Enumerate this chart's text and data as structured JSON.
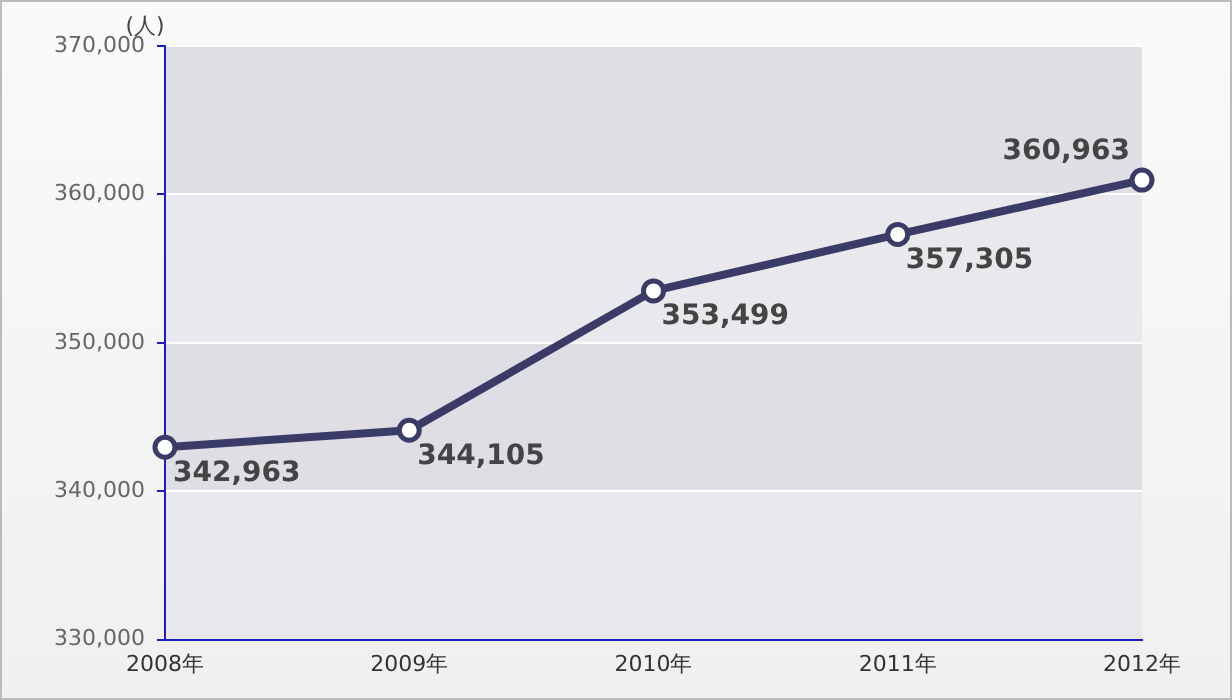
{
  "chart_data": {
    "type": "line",
    "ylabel": "(人)",
    "categories": [
      "2008年",
      "2009年",
      "2010年",
      "2011年",
      "2012年"
    ],
    "series": [
      {
        "color": "#3b3b68",
        "values": [
          342963,
          344105,
          353499,
          357305,
          360963
        ],
        "value_labels": [
          "342,963",
          "344,105",
          "353,499",
          "357,305",
          "360,963"
        ]
      }
    ],
    "ylim": [
      330000,
      370000
    ],
    "yticks": [
      {
        "value": 330000,
        "label": "330,000"
      },
      {
        "value": 340000,
        "label": "340,000"
      },
      {
        "value": 350000,
        "label": "350,000"
      },
      {
        "value": 360000,
        "label": "360,000"
      },
      {
        "value": 370000,
        "label": "370,000"
      }
    ],
    "grid": "y",
    "marker": "circle",
    "line_style": "solid",
    "legend": false
  }
}
